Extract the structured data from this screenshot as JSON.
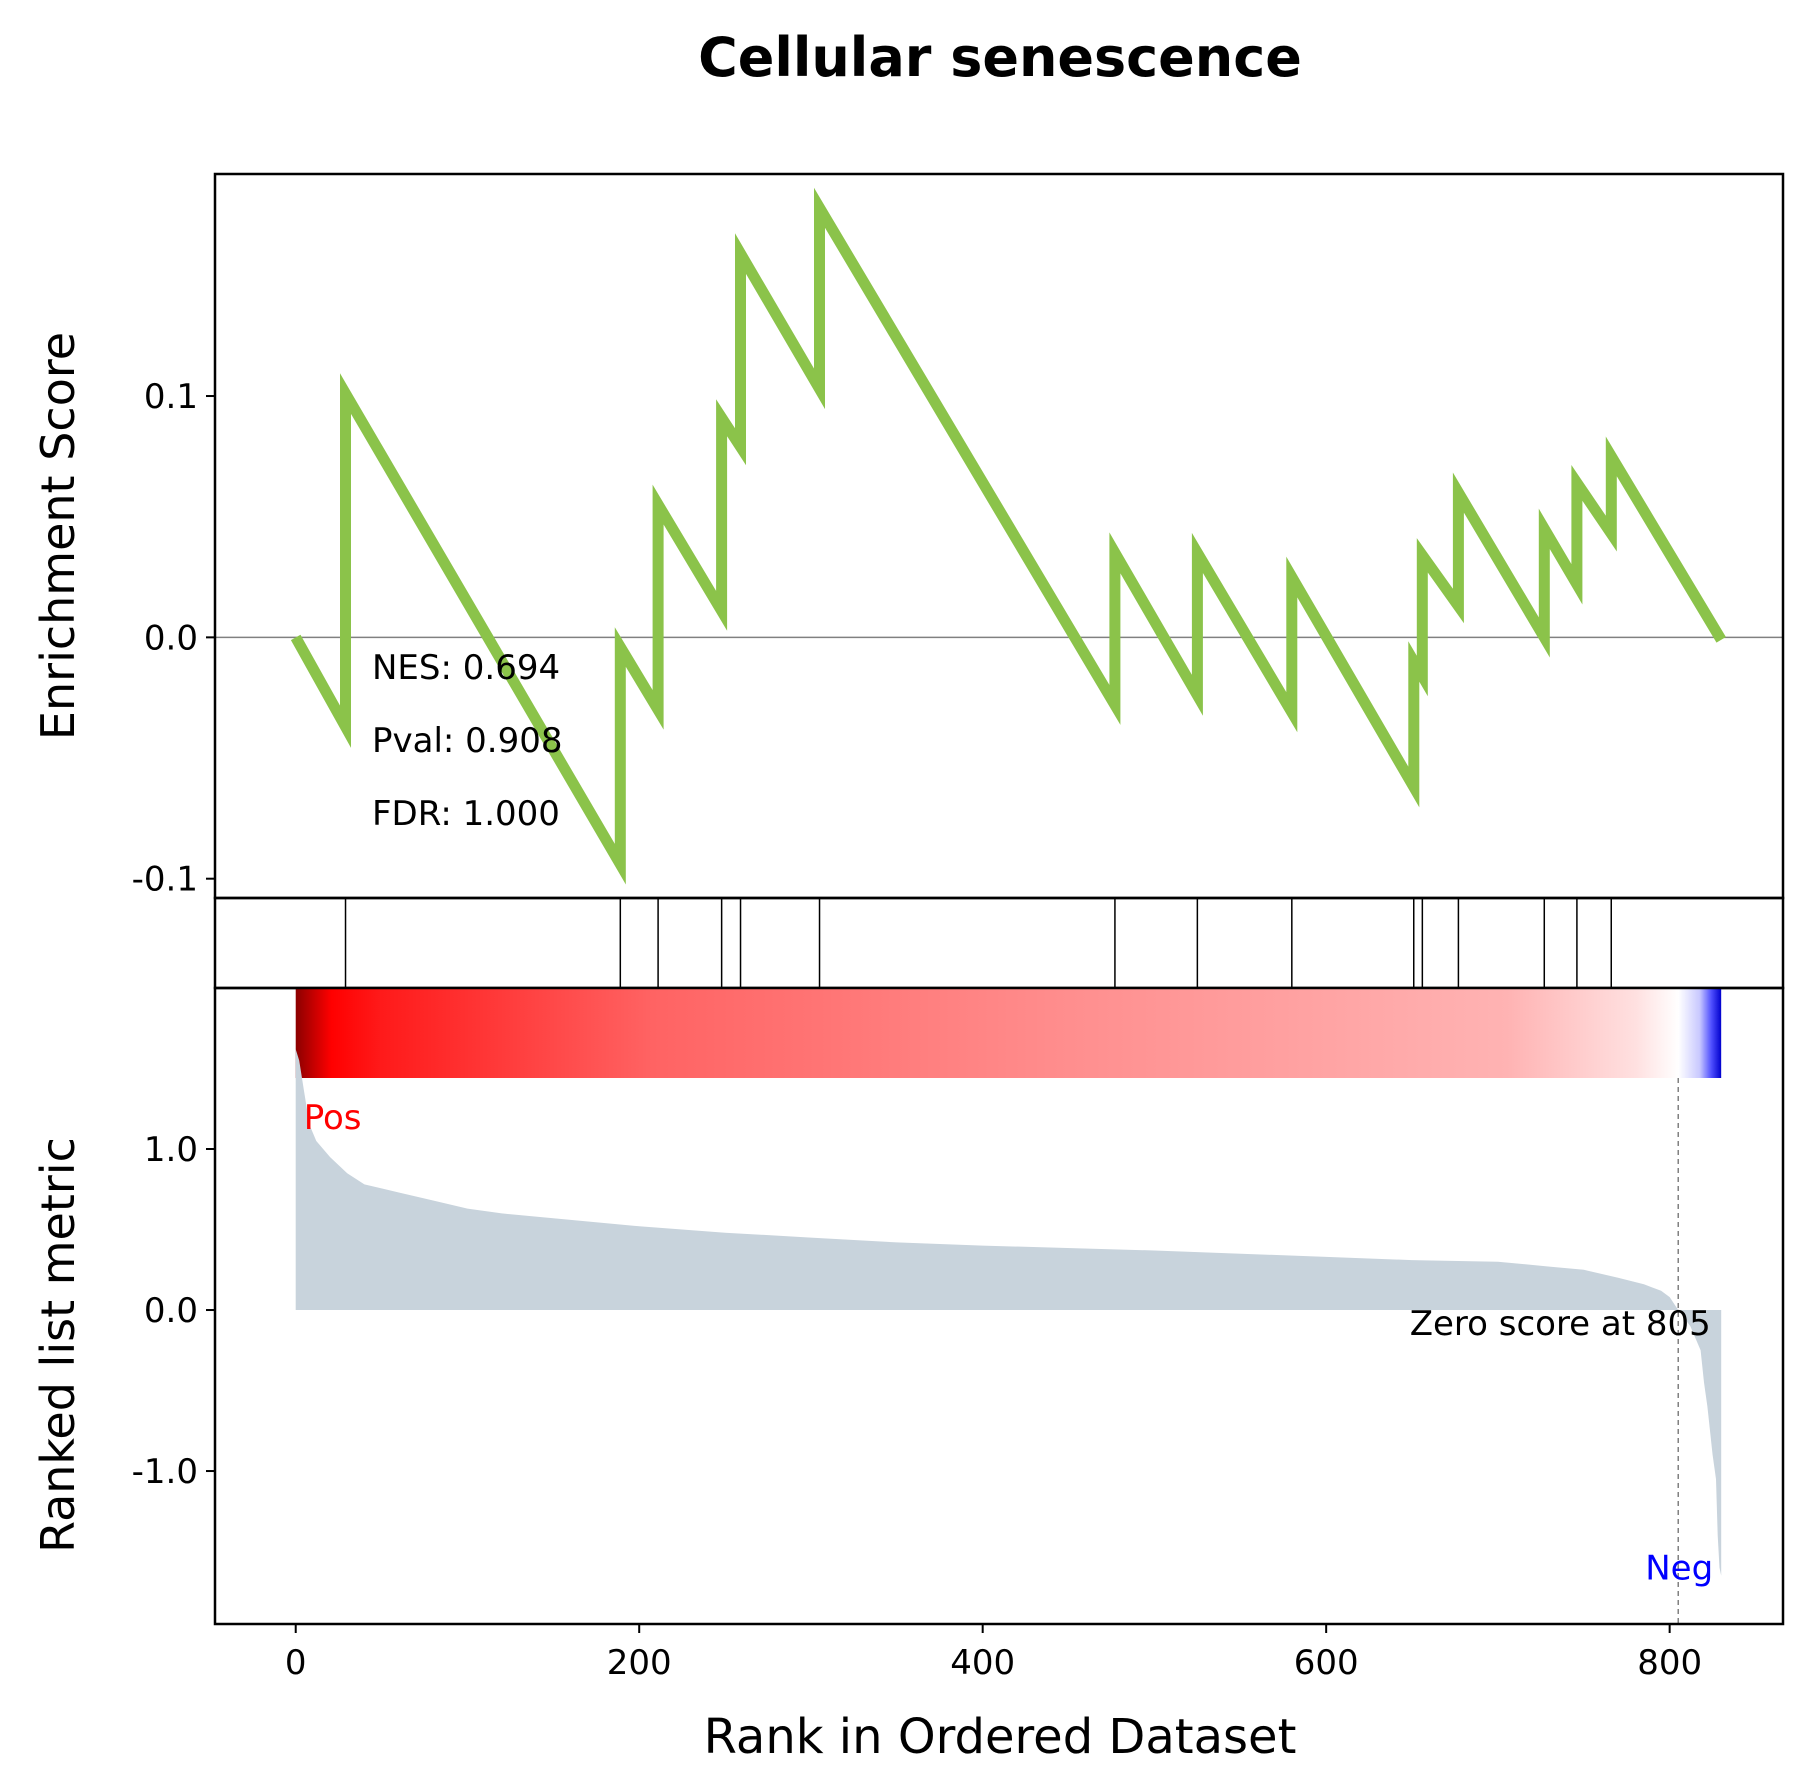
{
  "chart_data": {
    "type": "line",
    "title": "Cellular senescence",
    "xlabel": "Rank in Ordered Dataset",
    "xlim": [
      -47,
      866
    ],
    "xticks": [
      0,
      200,
      400,
      600,
      800
    ],
    "colors": {
      "es_line": "#8bc34a",
      "metric_fill": "#c8d3dc",
      "pos": "#ff0000",
      "neg": "#0000ff",
      "zero_line": "#808080"
    },
    "es": {
      "ylabel": "Enrichment Score",
      "ylim": [
        -0.108,
        0.192
      ],
      "yticks": [
        {
          "v": 0.1,
          "label": "0.1"
        },
        {
          "v": 0.0,
          "label": "0.0"
        },
        {
          "v": -0.1,
          "label": "-0.1"
        }
      ],
      "x": [
        0,
        29,
        29,
        189,
        189,
        211,
        211,
        248,
        248,
        259,
        259,
        305,
        305,
        477,
        477,
        525,
        525,
        580,
        580,
        651,
        651,
        656,
        656,
        677,
        677,
        727,
        727,
        746,
        746,
        766,
        766,
        830
      ],
      "y": [
        0.0,
        -0.037,
        0.101,
        -0.094,
        -0.004,
        -0.03,
        0.055,
        0.011,
        0.091,
        0.079,
        0.159,
        0.103,
        0.178,
        -0.028,
        0.035,
        -0.024,
        0.035,
        -0.031,
        0.025,
        -0.062,
        -0.01,
        -0.016,
        0.034,
        0.013,
        0.06,
        0.0,
        0.045,
        0.022,
        0.064,
        0.043,
        0.075,
        -0.001
      ],
      "stats": {
        "nes": "NES: 0.694",
        "pval": "Pval: 0.908",
        "fdr": "FDR: 1.000"
      }
    },
    "hits": [
      29,
      189,
      211,
      248,
      259,
      305,
      477,
      525,
      580,
      651,
      656,
      677,
      727,
      746,
      766
    ],
    "metric": {
      "ylabel": "Ranked list metric",
      "ylim": [
        -1.95,
        2.0
      ],
      "yticks": [
        {
          "v": 1.0,
          "label": "1.0"
        },
        {
          "v": 0.0,
          "label": "0.0"
        },
        {
          "v": -1.0,
          "label": "-1.0"
        }
      ],
      "x": [
        0,
        2,
        5,
        8,
        12,
        20,
        30,
        40,
        60,
        80,
        100,
        120,
        150,
        200,
        250,
        300,
        350,
        400,
        500,
        600,
        650,
        700,
        730,
        750,
        770,
        785,
        795,
        800,
        805,
        812,
        818,
        820,
        822,
        825,
        827,
        828,
        829,
        830
      ],
      "y": [
        1.62,
        1.55,
        1.35,
        1.15,
        1.05,
        0.95,
        0.85,
        0.78,
        0.73,
        0.68,
        0.63,
        0.6,
        0.57,
        0.52,
        0.48,
        0.45,
        0.42,
        0.4,
        0.37,
        0.33,
        0.31,
        0.3,
        0.27,
        0.25,
        0.2,
        0.16,
        0.12,
        0.08,
        0.0,
        -0.1,
        -0.25,
        -0.45,
        -0.6,
        -0.9,
        -1.05,
        -1.4,
        -1.6,
        -1.65
      ],
      "pos_label": "Pos",
      "neg_label": "Neg",
      "zero_cross": 805,
      "zero_label": "Zero score at 805"
    }
  }
}
